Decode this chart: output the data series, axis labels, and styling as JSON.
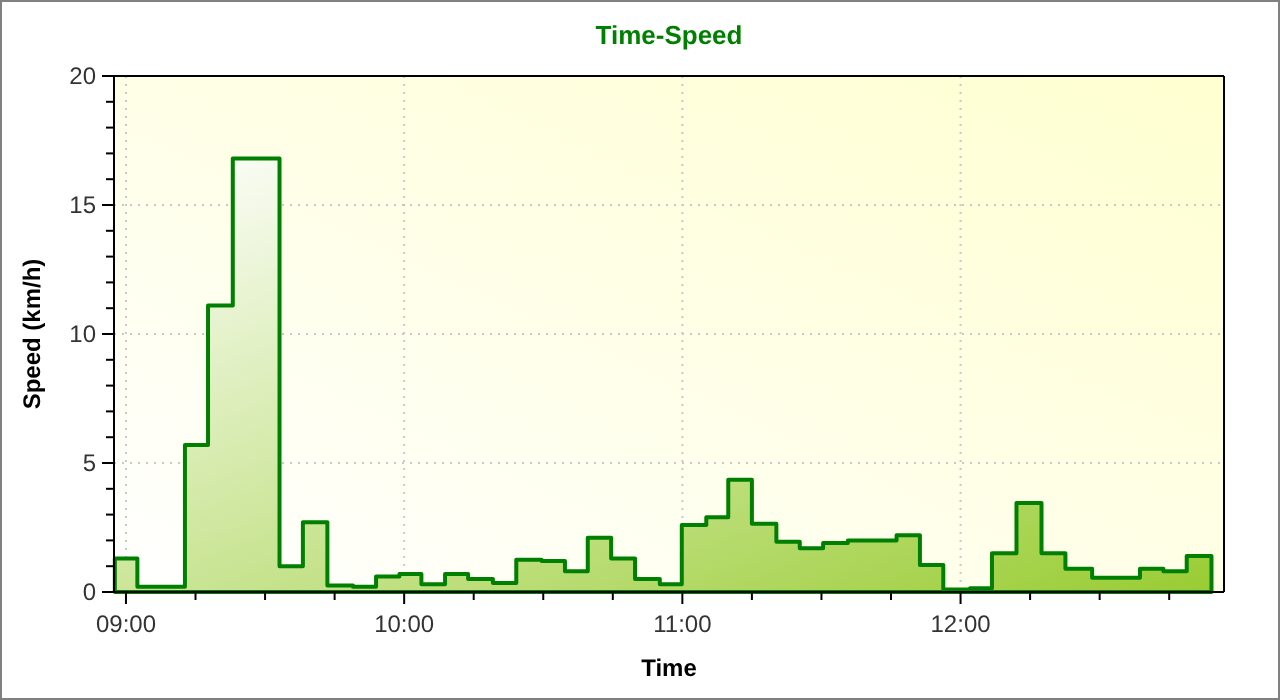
{
  "chart_data": {
    "type": "area",
    "title": "Time-Speed",
    "xlabel": "Time",
    "ylabel": "Speed (km/h)",
    "xlim": [
      8.957,
      12.947
    ],
    "xticks": [
      {
        "value": 9,
        "label": "09:00"
      },
      {
        "value": 9.25,
        "label": null
      },
      {
        "value": 9.5,
        "label": null
      },
      {
        "value": 9.75,
        "label": null
      },
      {
        "value": 10,
        "label": "10:00"
      },
      {
        "value": 10.25,
        "label": null
      },
      {
        "value": 10.5,
        "label": null
      },
      {
        "value": 10.75,
        "label": null
      },
      {
        "value": 11,
        "label": "11:00"
      },
      {
        "value": 11.25,
        "label": null
      },
      {
        "value": 11.5,
        "label": null
      },
      {
        "value": 11.75,
        "label": null
      },
      {
        "value": 12,
        "label": "12:00"
      },
      {
        "value": 12.25,
        "label": null
      },
      {
        "value": 12.5,
        "label": null
      },
      {
        "value": 12.75,
        "label": null
      }
    ],
    "ylim": [
      0,
      20
    ],
    "yticks": [
      0,
      {
        "value": 1,
        "label": null
      },
      {
        "value": 2,
        "label": null
      },
      {
        "value": 3,
        "label": null
      },
      {
        "value": 4,
        "label": null
      },
      5,
      {
        "value": 6,
        "label": null
      },
      {
        "value": 7,
        "label": null
      },
      {
        "value": 8,
        "label": null
      },
      {
        "value": 9,
        "label": null
      },
      10,
      {
        "value": 11,
        "label": null
      },
      {
        "value": 12,
        "label": null
      },
      {
        "value": 13,
        "label": null
      },
      {
        "value": 14,
        "label": null
      },
      15,
      {
        "value": 16,
        "label": null
      },
      {
        "value": 17,
        "label": null
      },
      {
        "value": 18,
        "label": null
      },
      {
        "value": 19,
        "label": null
      },
      20
    ],
    "grid": true,
    "series": [
      {
        "color": "#008000",
        "x": [
          8.96,
          9.041,
          9.212,
          9.295,
          9.384,
          9.552,
          9.636,
          9.724,
          9.816,
          9.899,
          9.983,
          10.062,
          10.147,
          10.23,
          10.319,
          10.403,
          10.494,
          10.578,
          10.66,
          10.744,
          10.83,
          10.919,
          10.998,
          11.086,
          11.165,
          11.25,
          11.338,
          11.422,
          11.506,
          11.595,
          11.77,
          11.854,
          11.938,
          12.034,
          12.113,
          12.201,
          12.291,
          12.377,
          12.473,
          12.645,
          12.729,
          12.813,
          12.902
        ],
        "values": [
          1.3,
          0.2,
          5.7,
          11.1,
          16.8,
          1.0,
          2.7,
          0.25,
          0.2,
          0.6,
          0.7,
          0.3,
          0.7,
          0.5,
          0.35,
          1.25,
          1.2,
          0.8,
          2.1,
          1.3,
          0.5,
          0.3,
          2.6,
          2.9,
          4.35,
          2.65,
          1.95,
          1.7,
          1.9,
          2.0,
          2.2,
          1.05,
          0.1,
          0.15,
          1.5,
          3.45,
          1.5,
          0.9,
          0.55,
          0.9,
          0.8,
          1.4,
          1.4
        ]
      }
    ]
  }
}
